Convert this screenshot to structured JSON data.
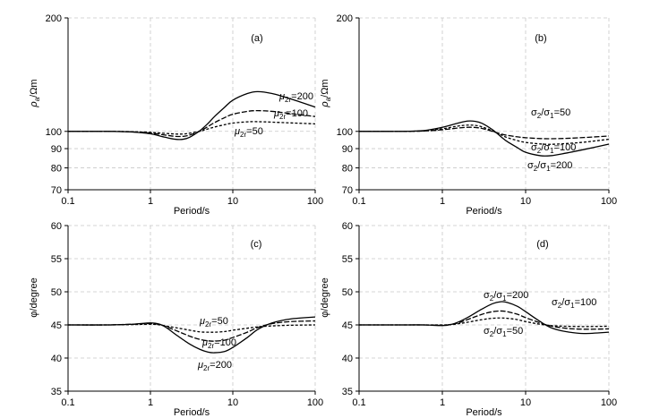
{
  "chart_data": [
    {
      "panel": "a",
      "type": "line",
      "title": "(a)",
      "xlabel": "Period/s",
      "ylabel": "ρa/Ωm",
      "xscale": "log",
      "yscale": "log",
      "xlim": [
        0.1,
        100
      ],
      "ylim": [
        70,
        200
      ],
      "xticks": [
        0.1,
        1,
        10,
        100
      ],
      "xtick_labels": [
        "0.1",
        "1",
        "10",
        "100"
      ],
      "yticks": [
        70,
        80,
        90,
        100,
        200
      ],
      "ytick_labels": [
        "70",
        "80",
        "90",
        "100",
        "200"
      ],
      "x": [
        0.1,
        0.3,
        0.6,
        1,
        1.5,
        2,
        2.5,
        3,
        4,
        5,
        6,
        8,
        10,
        15,
        20,
        30,
        50,
        100
      ],
      "series": [
        {
          "name": "μ2r=200",
          "label_pre": "μ",
          "label_sub": "2r",
          "label_post": "=200",
          "dash": "solid",
          "values": [
            100,
            100,
            99.6,
            98.5,
            96.5,
            95.3,
            95.3,
            96.5,
            100.5,
            105,
            109.5,
            116,
            121,
            126,
            127.5,
            126,
            122,
            116
          ]
        },
        {
          "name": "μ2r=100",
          "label_pre": "μ",
          "label_sub": "2r",
          "label_post": "=100",
          "dash": "6 2",
          "values": [
            100,
            100,
            99.7,
            99,
            97.8,
            97,
            97,
            97.8,
            100.2,
            103,
            105.5,
            108.8,
            111,
            113,
            113.5,
            113,
            111.5,
            109.5
          ]
        },
        {
          "name": "μ2r=50",
          "label_pre": "μ",
          "label_sub": "2r",
          "label_post": "=50",
          "dash": "3 2",
          "values": [
            100,
            100,
            99.8,
            99.4,
            98.8,
            98.4,
            98.4,
            98.9,
            100.1,
            101.5,
            102.7,
            104.2,
            105.2,
            106,
            106.1,
            105.8,
            105.3,
            104.7
          ]
        }
      ]
    },
    {
      "panel": "b",
      "type": "line",
      "title": "(b)",
      "xlabel": "Period/s",
      "ylabel": "ρa/Ωm",
      "xscale": "log",
      "yscale": "log",
      "xlim": [
        0.1,
        100
      ],
      "ylim": [
        70,
        200
      ],
      "xticks": [
        0.1,
        1,
        10,
        100
      ],
      "xtick_labels": [
        "0.1",
        "1",
        "10",
        "100"
      ],
      "yticks": [
        70,
        80,
        90,
        100,
        200
      ],
      "ytick_labels": [
        "70",
        "80",
        "90",
        "100",
        "200"
      ],
      "x": [
        0.1,
        0.3,
        0.6,
        1,
        1.5,
        2,
        2.5,
        3,
        4,
        5,
        6,
        8,
        10,
        15,
        20,
        30,
        50,
        100
      ],
      "series": [
        {
          "name": "σ2/σ1=50",
          "label": "σ2/σ1=50",
          "dash": "6 2",
          "values": [
            100,
            100,
            100.2,
            101,
            102,
            102.5,
            102.4,
            101.8,
            100,
            98.5,
            97.6,
            96.7,
            96.2,
            95.7,
            95.6,
            95.8,
            96.3,
            97.2
          ]
        },
        {
          "name": "σ2/σ1=100",
          "label": "σ2/σ1=100",
          "dash": "3 2",
          "values": [
            100,
            100,
            100.3,
            101.6,
            103.2,
            103.9,
            103.7,
            102.8,
            100.3,
            98,
            96.3,
            94.5,
            93.5,
            92.6,
            92.4,
            92.8,
            93.6,
            95.3
          ]
        },
        {
          "name": "σ2/σ1=200",
          "label": "σ2/σ1=200",
          "dash": "solid",
          "values": [
            100,
            100,
            100.5,
            102.5,
            105,
            106.5,
            106.3,
            105,
            101,
            97,
            94,
            90.5,
            88,
            86.2,
            86.2,
            87.5,
            89.5,
            92.5
          ]
        }
      ]
    },
    {
      "panel": "c",
      "type": "line",
      "title": "(c)",
      "xlabel": "Period/s",
      "ylabel": "φ/degree",
      "xscale": "log",
      "yscale": "linear",
      "xlim": [
        0.1,
        100
      ],
      "ylim": [
        35,
        60
      ],
      "xticks": [
        0.1,
        1,
        10,
        100
      ],
      "xtick_labels": [
        "0.1",
        "1",
        "10",
        "100"
      ],
      "yticks": [
        35,
        40,
        45,
        50,
        55,
        60
      ],
      "ytick_labels": [
        "35",
        "40",
        "45",
        "50",
        "55",
        "60"
      ],
      "x": [
        0.1,
        0.3,
        0.6,
        1,
        1.3,
        1.6,
        2,
        3,
        4,
        5,
        6,
        8,
        10,
        15,
        20,
        30,
        50,
        100
      ],
      "series": [
        {
          "name": "μ2r=50",
          "label_pre": "μ",
          "label_sub": "2r",
          "label_post": "=50",
          "dash": "3 2",
          "values": [
            45,
            45,
            45.05,
            45.1,
            45,
            44.8,
            44.6,
            44.2,
            43.95,
            43.9,
            43.9,
            44,
            44.2,
            44.5,
            44.7,
            44.85,
            44.95,
            45
          ]
        },
        {
          "name": "μ2r=100",
          "label_pre": "μ",
          "label_sub": "2r",
          "label_post": "=100",
          "dash": "6 2",
          "values": [
            45,
            45,
            45.1,
            45.2,
            45.05,
            44.7,
            44.2,
            43.3,
            42.8,
            42.6,
            42.55,
            42.7,
            43.1,
            43.9,
            44.6,
            45.2,
            45.5,
            45.6
          ]
        },
        {
          "name": "μ2r=200",
          "label_pre": "μ",
          "label_sub": "2r",
          "label_post": "=200",
          "dash": "solid",
          "values": [
            45,
            45,
            45.1,
            45.3,
            45.1,
            44.5,
            43.6,
            42.1,
            41.3,
            40.9,
            40.8,
            41,
            41.6,
            43.1,
            44.3,
            45.3,
            45.9,
            46.2
          ]
        }
      ]
    },
    {
      "panel": "d",
      "type": "line",
      "title": "(d)",
      "xlabel": "Period/s",
      "ylabel": "φ/degree",
      "xscale": "log",
      "yscale": "linear",
      "xlim": [
        0.1,
        100
      ],
      "ylim": [
        35,
        60
      ],
      "xticks": [
        0.1,
        1,
        10,
        100
      ],
      "xtick_labels": [
        "0.1",
        "1",
        "10",
        "100"
      ],
      "yticks": [
        35,
        40,
        45,
        50,
        55,
        60
      ],
      "ytick_labels": [
        "35",
        "40",
        "45",
        "50",
        "55",
        "60"
      ],
      "x": [
        0.1,
        0.3,
        0.6,
        1,
        1.3,
        1.6,
        2,
        3,
        4,
        5,
        6,
        8,
        10,
        15,
        20,
        30,
        50,
        100
      ],
      "series": [
        {
          "name": "σ2/σ1=200",
          "label": "σ2/σ1=200",
          "dash": "solid",
          "values": [
            45,
            45,
            45,
            44.9,
            45.1,
            45.5,
            46.1,
            47.4,
            48.2,
            48.5,
            48.4,
            47.8,
            47,
            45.5,
            44.6,
            44,
            43.7,
            43.9
          ]
        },
        {
          "name": "σ2/σ1=100",
          "label": "σ2/σ1=100",
          "dash": "6 2",
          "values": [
            45,
            45,
            45,
            44.95,
            45.1,
            45.35,
            45.8,
            46.6,
            47,
            47.1,
            47,
            46.6,
            46.1,
            45.3,
            44.85,
            44.5,
            44.35,
            44.4
          ]
        },
        {
          "name": "σ2/σ1=50",
          "label": "σ2/σ1=50",
          "dash": "3 2",
          "values": [
            45,
            45,
            45,
            45,
            45.05,
            45.2,
            45.4,
            45.8,
            46,
            46.05,
            46,
            45.8,
            45.5,
            45.1,
            44.9,
            44.8,
            44.75,
            44.8
          ]
        }
      ]
    }
  ]
}
